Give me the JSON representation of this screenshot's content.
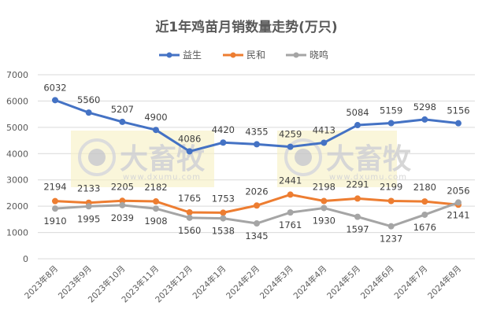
{
  "chart_data": {
    "type": "line",
    "title": "近1年鸡苗月销数量走势(万只)",
    "xlabel": "",
    "ylabel": "",
    "ylim": [
      0,
      7000
    ],
    "yticks": [
      0,
      1000,
      2000,
      3000,
      4000,
      5000,
      6000,
      7000
    ],
    "grid": true,
    "legend_position": "top",
    "categories": [
      "2023年8月",
      "2023年9月",
      "2023年10月",
      "2023年11月",
      "2023年12月",
      "2024年1月",
      "2024年2月",
      "2024年3月",
      "2024年4月",
      "2024年5月",
      "2024年6月",
      "2024年7月",
      "2024年8月"
    ],
    "series": [
      {
        "name": "益生",
        "color": "#4472c4",
        "values": [
          6032,
          5560,
          5207,
          4900,
          4086,
          4420,
          4355,
          4259,
          4413,
          5084,
          5159,
          5298,
          5156
        ]
      },
      {
        "name": "民和",
        "color": "#ed7d31",
        "values": [
          2194,
          2133,
          2205,
          2182,
          1765,
          1753,
          2026,
          2441,
          2198,
          2291,
          2199,
          2180,
          2056
        ]
      },
      {
        "name": "晓鸣",
        "color": "#a5a5a5",
        "values": [
          1910,
          1995,
          2039,
          1908,
          1560,
          1538,
          1345,
          1761,
          1930,
          1597,
          1237,
          1676,
          2141
        ]
      }
    ],
    "annotations": [
      "大畜牧 www.dxumu.com watermark (x2)"
    ]
  },
  "watermark": {
    "brand": "大畜牧",
    "url": "www.dxumu.com"
  }
}
